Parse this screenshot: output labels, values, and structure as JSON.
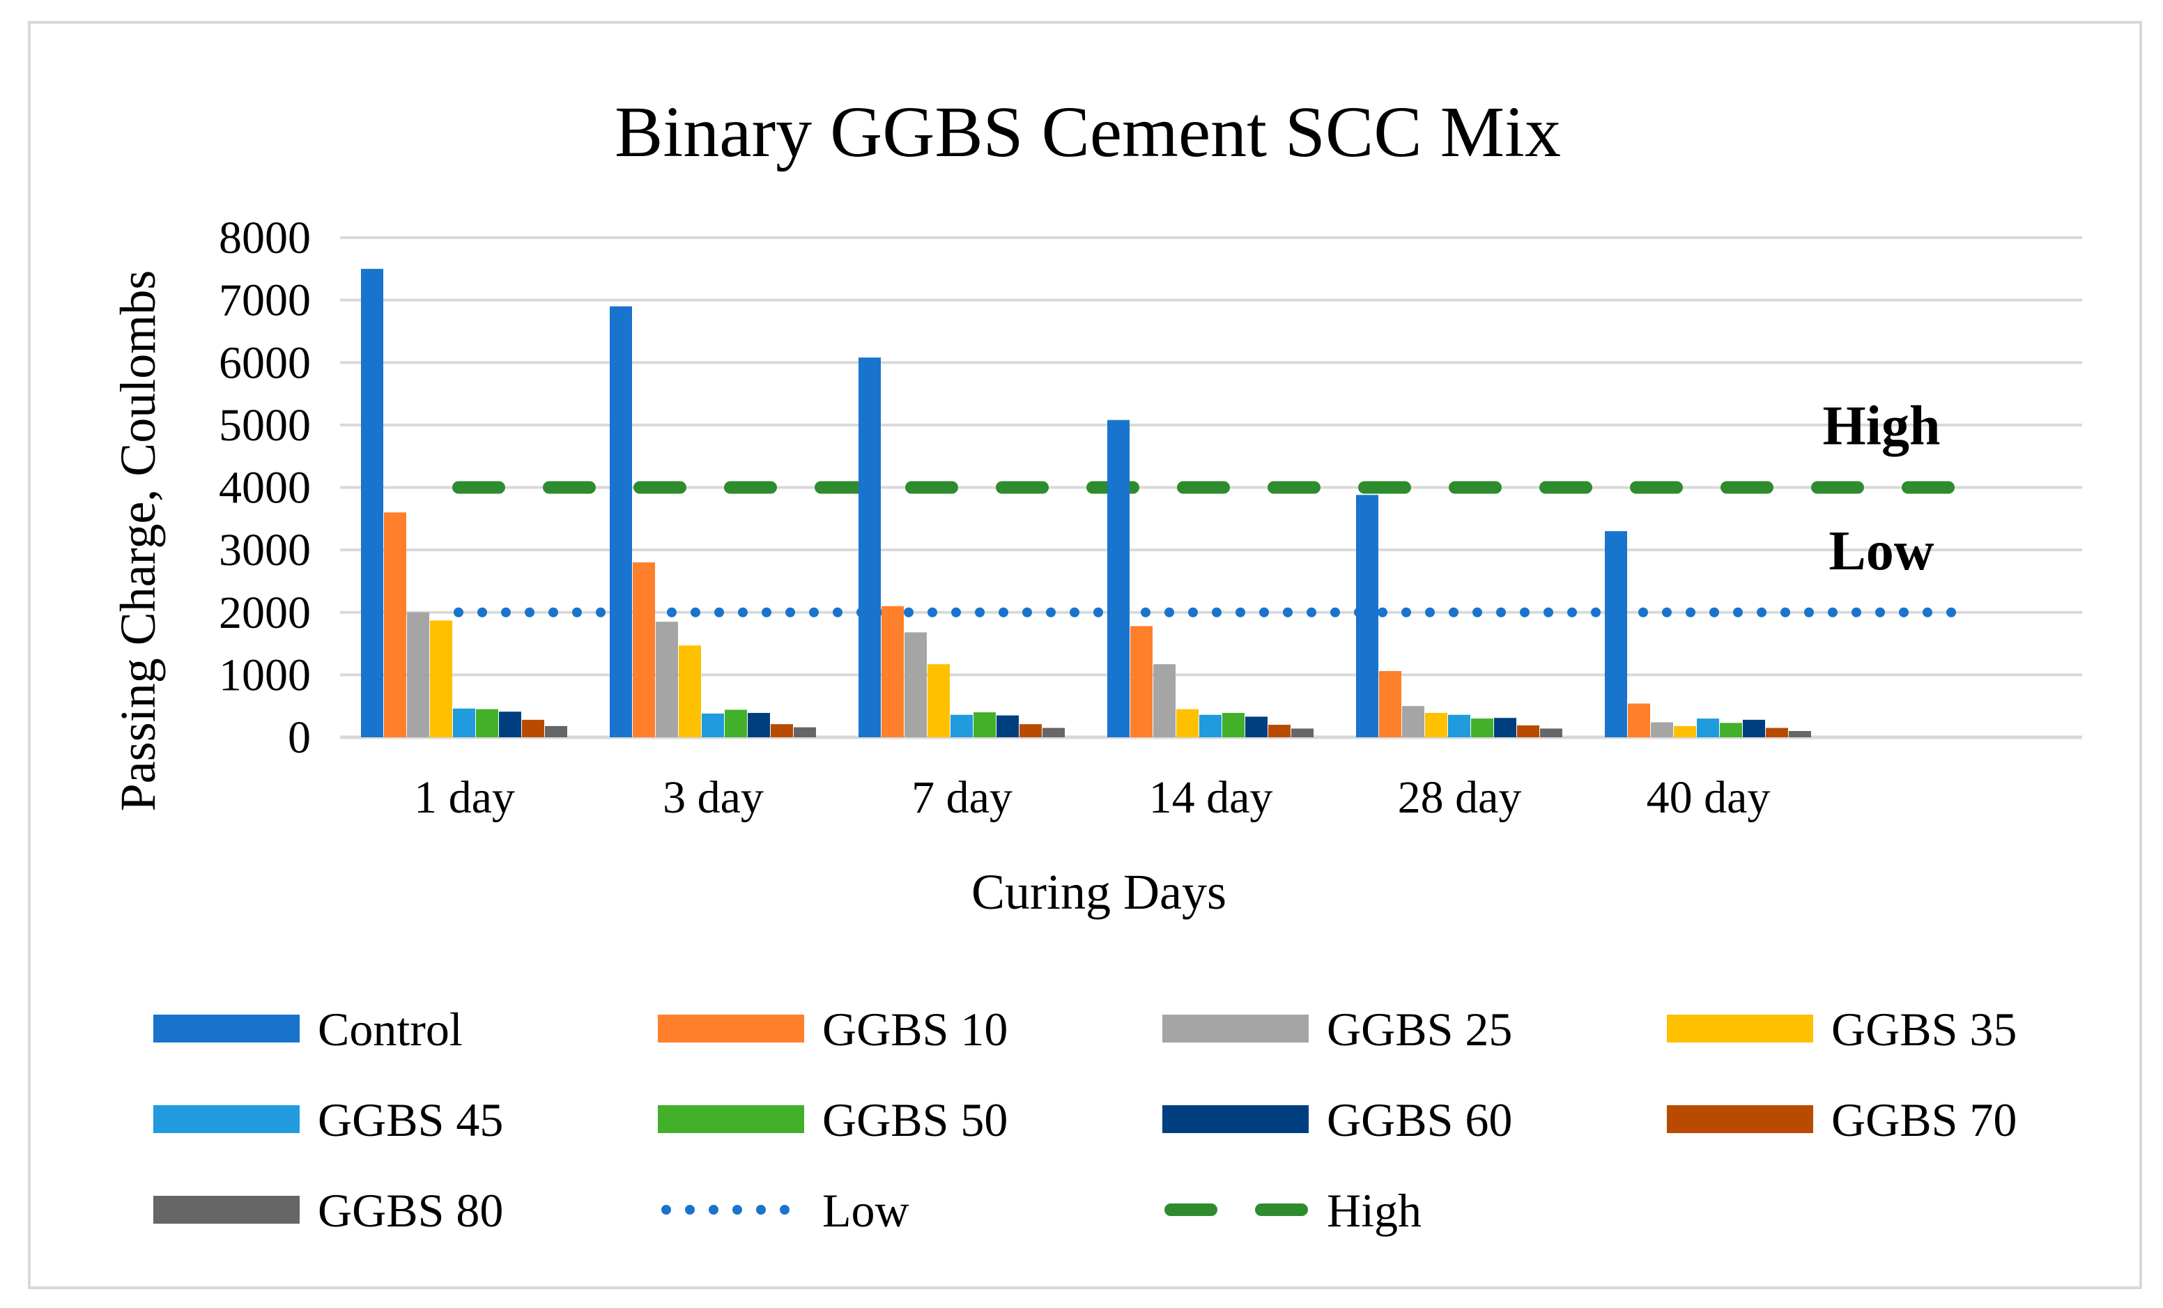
{
  "chart_data": {
    "type": "bar",
    "title": "Binary GGBS Cement SCC Mix",
    "xlabel": "Curing Days",
    "ylabel": "Passing Charge, Coulombs",
    "categories": [
      "1 day",
      "3 day",
      "7 day",
      "14 day",
      "28 day",
      "40 day"
    ],
    "ylim": [
      0,
      8000
    ],
    "yticks": [
      "0",
      "1000",
      "2000",
      "3000",
      "4000",
      "5000",
      "6000",
      "7000",
      "8000"
    ],
    "grid": true,
    "legend_position": "bottom",
    "series": [
      {
        "name": "Control",
        "color": "#1874CD",
        "values": [
          7500,
          6900,
          6080,
          5080,
          3880,
          3300
        ]
      },
      {
        "name": "GGBS 10",
        "color": "#FF7F2A",
        "values": [
          3600,
          2800,
          2100,
          1780,
          1060,
          540
        ]
      },
      {
        "name": "GGBS 25",
        "color": "#A5A5A5",
        "values": [
          2000,
          1850,
          1680,
          1170,
          500,
          240
        ]
      },
      {
        "name": "GGBS 35",
        "color": "#FFC000",
        "values": [
          1870,
          1470,
          1170,
          450,
          390,
          180
        ]
      },
      {
        "name": "GGBS 45",
        "color": "#1F9BDE",
        "values": [
          460,
          380,
          360,
          360,
          360,
          300
        ]
      },
      {
        "name": "GGBS 50",
        "color": "#43B02A",
        "values": [
          450,
          440,
          400,
          390,
          300,
          230
        ]
      },
      {
        "name": "GGBS 60",
        "color": "#003F7F",
        "values": [
          410,
          390,
          350,
          330,
          310,
          280
        ]
      },
      {
        "name": "GGBS 70",
        "color": "#B84B00",
        "values": [
          280,
          210,
          210,
          200,
          190,
          150
        ]
      },
      {
        "name": "GGBS 80",
        "color": "#666666",
        "values": [
          180,
          160,
          150,
          140,
          140,
          100
        ]
      }
    ],
    "reference_lines": [
      {
        "name": "Low",
        "value": 2000,
        "style": "dotted",
        "color": "#1874CD",
        "annotation": "Low"
      },
      {
        "name": "High",
        "value": 4000,
        "style": "dashed",
        "color": "#2E8B2E",
        "annotation": "High"
      }
    ]
  }
}
